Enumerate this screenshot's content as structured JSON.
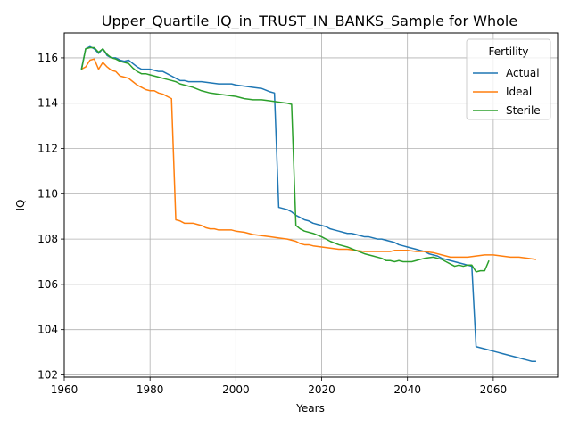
{
  "chart_data": {
    "type": "line",
    "title": "Upper_Quartile_IQ_in_TRUST_IN_BANKS_Sample for Whole",
    "xlabel": "Years",
    "ylabel": "IQ",
    "xlim": [
      1960,
      2075
    ],
    "ylim": [
      101.9,
      117.1
    ],
    "xticks": [
      1960,
      1980,
      2000,
      2020,
      2040,
      2060
    ],
    "yticks": [
      102,
      104,
      106,
      108,
      110,
      112,
      114,
      116
    ],
    "grid": true,
    "legend": {
      "title": "Fertility",
      "position": "top-right"
    },
    "series": [
      {
        "name": "Actual",
        "color": "#1f77b4",
        "points": [
          [
            1964,
            115.5
          ],
          [
            1965,
            116.4
          ],
          [
            1966,
            116.5
          ],
          [
            1967,
            116.4
          ],
          [
            1968,
            116.2
          ],
          [
            1969,
            116.4
          ],
          [
            1970,
            116.1
          ],
          [
            1971,
            116.0
          ],
          [
            1972,
            116.0
          ],
          [
            1973,
            115.9
          ],
          [
            1974,
            115.85
          ],
          [
            1975,
            115.9
          ],
          [
            1976,
            115.75
          ],
          [
            1977,
            115.6
          ],
          [
            1978,
            115.5
          ],
          [
            1979,
            115.5
          ],
          [
            1980,
            115.5
          ],
          [
            1981,
            115.45
          ],
          [
            1982,
            115.4
          ],
          [
            1983,
            115.4
          ],
          [
            1984,
            115.3
          ],
          [
            1985,
            115.2
          ],
          [
            1986,
            115.1
          ],
          [
            1987,
            115.0
          ],
          [
            1988,
            115.0
          ],
          [
            1989,
            114.95
          ],
          [
            1990,
            114.95
          ],
          [
            1992,
            114.95
          ],
          [
            1994,
            114.9
          ],
          [
            1996,
            114.85
          ],
          [
            1998,
            114.85
          ],
          [
            1999,
            114.85
          ],
          [
            2000,
            114.8
          ],
          [
            2002,
            114.75
          ],
          [
            2004,
            114.7
          ],
          [
            2006,
            114.65
          ],
          [
            2008,
            114.5
          ],
          [
            2009,
            114.45
          ],
          [
            2010,
            109.4
          ],
          [
            2011,
            109.35
          ],
          [
            2012,
            109.3
          ],
          [
            2013,
            109.2
          ],
          [
            2014,
            109.05
          ],
          [
            2015,
            108.95
          ],
          [
            2016,
            108.85
          ],
          [
            2017,
            108.8
          ],
          [
            2018,
            108.7
          ],
          [
            2019,
            108.65
          ],
          [
            2020,
            108.6
          ],
          [
            2021,
            108.55
          ],
          [
            2022,
            108.45
          ],
          [
            2023,
            108.4
          ],
          [
            2024,
            108.35
          ],
          [
            2025,
            108.3
          ],
          [
            2026,
            108.25
          ],
          [
            2027,
            108.25
          ],
          [
            2028,
            108.2
          ],
          [
            2029,
            108.15
          ],
          [
            2030,
            108.1
          ],
          [
            2031,
            108.1
          ],
          [
            2032,
            108.05
          ],
          [
            2033,
            108.0
          ],
          [
            2034,
            108.0
          ],
          [
            2035,
            107.95
          ],
          [
            2036,
            107.9
          ],
          [
            2037,
            107.85
          ],
          [
            2038,
            107.75
          ],
          [
            2039,
            107.7
          ],
          [
            2040,
            107.65
          ],
          [
            2041,
            107.6
          ],
          [
            2042,
            107.55
          ],
          [
            2043,
            107.5
          ],
          [
            2044,
            107.45
          ],
          [
            2045,
            107.35
          ],
          [
            2046,
            107.3
          ],
          [
            2047,
            107.25
          ],
          [
            2048,
            107.15
          ],
          [
            2049,
            107.1
          ],
          [
            2050,
            107.05
          ],
          [
            2051,
            107.0
          ],
          [
            2052,
            106.95
          ],
          [
            2053,
            106.9
          ],
          [
            2054,
            106.85
          ],
          [
            2055,
            106.8
          ],
          [
            2056,
            103.25
          ],
          [
            2057,
            103.2
          ],
          [
            2058,
            103.15
          ],
          [
            2059,
            103.1
          ],
          [
            2060,
            103.05
          ],
          [
            2061,
            103.0
          ],
          [
            2062,
            102.95
          ],
          [
            2063,
            102.9
          ],
          [
            2064,
            102.85
          ],
          [
            2065,
            102.8
          ],
          [
            2066,
            102.75
          ],
          [
            2067,
            102.7
          ],
          [
            2068,
            102.65
          ],
          [
            2069,
            102.6
          ],
          [
            2070,
            102.6
          ]
        ]
      },
      {
        "name": "Ideal",
        "color": "#ff7f0e",
        "points": [
          [
            1964,
            115.5
          ],
          [
            1965,
            115.6
          ],
          [
            1966,
            115.9
          ],
          [
            1967,
            115.95
          ],
          [
            1968,
            115.5
          ],
          [
            1969,
            115.8
          ],
          [
            1970,
            115.6
          ],
          [
            1971,
            115.45
          ],
          [
            1972,
            115.4
          ],
          [
            1973,
            115.2
          ],
          [
            1974,
            115.15
          ],
          [
            1975,
            115.1
          ],
          [
            1976,
            114.95
          ],
          [
            1977,
            114.8
          ],
          [
            1978,
            114.7
          ],
          [
            1979,
            114.6
          ],
          [
            1980,
            114.55
          ],
          [
            1981,
            114.55
          ],
          [
            1982,
            114.45
          ],
          [
            1983,
            114.4
          ],
          [
            1984,
            114.3
          ],
          [
            1985,
            114.2
          ],
          [
            1986,
            108.85
          ],
          [
            1987,
            108.8
          ],
          [
            1988,
            108.7
          ],
          [
            1989,
            108.7
          ],
          [
            1990,
            108.7
          ],
          [
            1991,
            108.65
          ],
          [
            1992,
            108.6
          ],
          [
            1993,
            108.5
          ],
          [
            1994,
            108.45
          ],
          [
            1995,
            108.45
          ],
          [
            1996,
            108.4
          ],
          [
            1997,
            108.4
          ],
          [
            1998,
            108.4
          ],
          [
            1999,
            108.4
          ],
          [
            2000,
            108.35
          ],
          [
            2002,
            108.3
          ],
          [
            2004,
            108.2
          ],
          [
            2006,
            108.15
          ],
          [
            2008,
            108.1
          ],
          [
            2010,
            108.05
          ],
          [
            2012,
            108.0
          ],
          [
            2014,
            107.9
          ],
          [
            2015,
            107.8
          ],
          [
            2016,
            107.75
          ],
          [
            2017,
            107.75
          ],
          [
            2018,
            107.7
          ],
          [
            2020,
            107.65
          ],
          [
            2022,
            107.6
          ],
          [
            2024,
            107.55
          ],
          [
            2026,
            107.55
          ],
          [
            2028,
            107.5
          ],
          [
            2030,
            107.45
          ],
          [
            2032,
            107.45
          ],
          [
            2034,
            107.45
          ],
          [
            2036,
            107.45
          ],
          [
            2037,
            107.5
          ],
          [
            2038,
            107.5
          ],
          [
            2040,
            107.5
          ],
          [
            2042,
            107.45
          ],
          [
            2044,
            107.45
          ],
          [
            2046,
            107.4
          ],
          [
            2048,
            107.3
          ],
          [
            2050,
            107.2
          ],
          [
            2052,
            107.2
          ],
          [
            2054,
            107.2
          ],
          [
            2056,
            107.25
          ],
          [
            2058,
            107.3
          ],
          [
            2060,
            107.3
          ],
          [
            2062,
            107.25
          ],
          [
            2064,
            107.2
          ],
          [
            2066,
            107.2
          ],
          [
            2068,
            107.15
          ],
          [
            2070,
            107.1
          ]
        ]
      },
      {
        "name": "Sterile",
        "color": "#2ca02c",
        "points": [
          [
            1964,
            115.45
          ],
          [
            1965,
            116.4
          ],
          [
            1966,
            116.45
          ],
          [
            1967,
            116.45
          ],
          [
            1968,
            116.25
          ],
          [
            1969,
            116.4
          ],
          [
            1970,
            116.15
          ],
          [
            1971,
            116.0
          ],
          [
            1972,
            115.95
          ],
          [
            1973,
            115.85
          ],
          [
            1974,
            115.8
          ],
          [
            1975,
            115.75
          ],
          [
            1976,
            115.55
          ],
          [
            1977,
            115.4
          ],
          [
            1978,
            115.3
          ],
          [
            1979,
            115.3
          ],
          [
            1980,
            115.25
          ],
          [
            1981,
            115.2
          ],
          [
            1982,
            115.15
          ],
          [
            1983,
            115.1
          ],
          [
            1984,
            115.05
          ],
          [
            1985,
            115.0
          ],
          [
            1986,
            114.95
          ],
          [
            1987,
            114.85
          ],
          [
            1988,
            114.8
          ],
          [
            1989,
            114.75
          ],
          [
            1990,
            114.7
          ],
          [
            1992,
            114.55
          ],
          [
            1994,
            114.45
          ],
          [
            1996,
            114.4
          ],
          [
            1998,
            114.35
          ],
          [
            2000,
            114.3
          ],
          [
            2002,
            114.2
          ],
          [
            2004,
            114.15
          ],
          [
            2006,
            114.15
          ],
          [
            2008,
            114.1
          ],
          [
            2010,
            114.05
          ],
          [
            2012,
            114.0
          ],
          [
            2013,
            113.95
          ],
          [
            2014,
            108.6
          ],
          [
            2015,
            108.45
          ],
          [
            2016,
            108.35
          ],
          [
            2018,
            108.25
          ],
          [
            2020,
            108.1
          ],
          [
            2022,
            107.9
          ],
          [
            2024,
            107.75
          ],
          [
            2026,
            107.65
          ],
          [
            2028,
            107.5
          ],
          [
            2030,
            107.35
          ],
          [
            2032,
            107.25
          ],
          [
            2034,
            107.15
          ],
          [
            2035,
            107.05
          ],
          [
            2036,
            107.05
          ],
          [
            2037,
            107.0
          ],
          [
            2038,
            107.05
          ],
          [
            2039,
            107.0
          ],
          [
            2040,
            107.0
          ],
          [
            2041,
            107.0
          ],
          [
            2042,
            107.05
          ],
          [
            2043,
            107.1
          ],
          [
            2044,
            107.15
          ],
          [
            2046,
            107.2
          ],
          [
            2048,
            107.1
          ],
          [
            2049,
            107.0
          ],
          [
            2050,
            106.9
          ],
          [
            2051,
            106.8
          ],
          [
            2052,
            106.85
          ],
          [
            2053,
            106.8
          ],
          [
            2054,
            106.85
          ],
          [
            2055,
            106.85
          ],
          [
            2056,
            106.55
          ],
          [
            2057,
            106.6
          ],
          [
            2058,
            106.6
          ],
          [
            2059,
            107.05
          ]
        ]
      }
    ]
  }
}
